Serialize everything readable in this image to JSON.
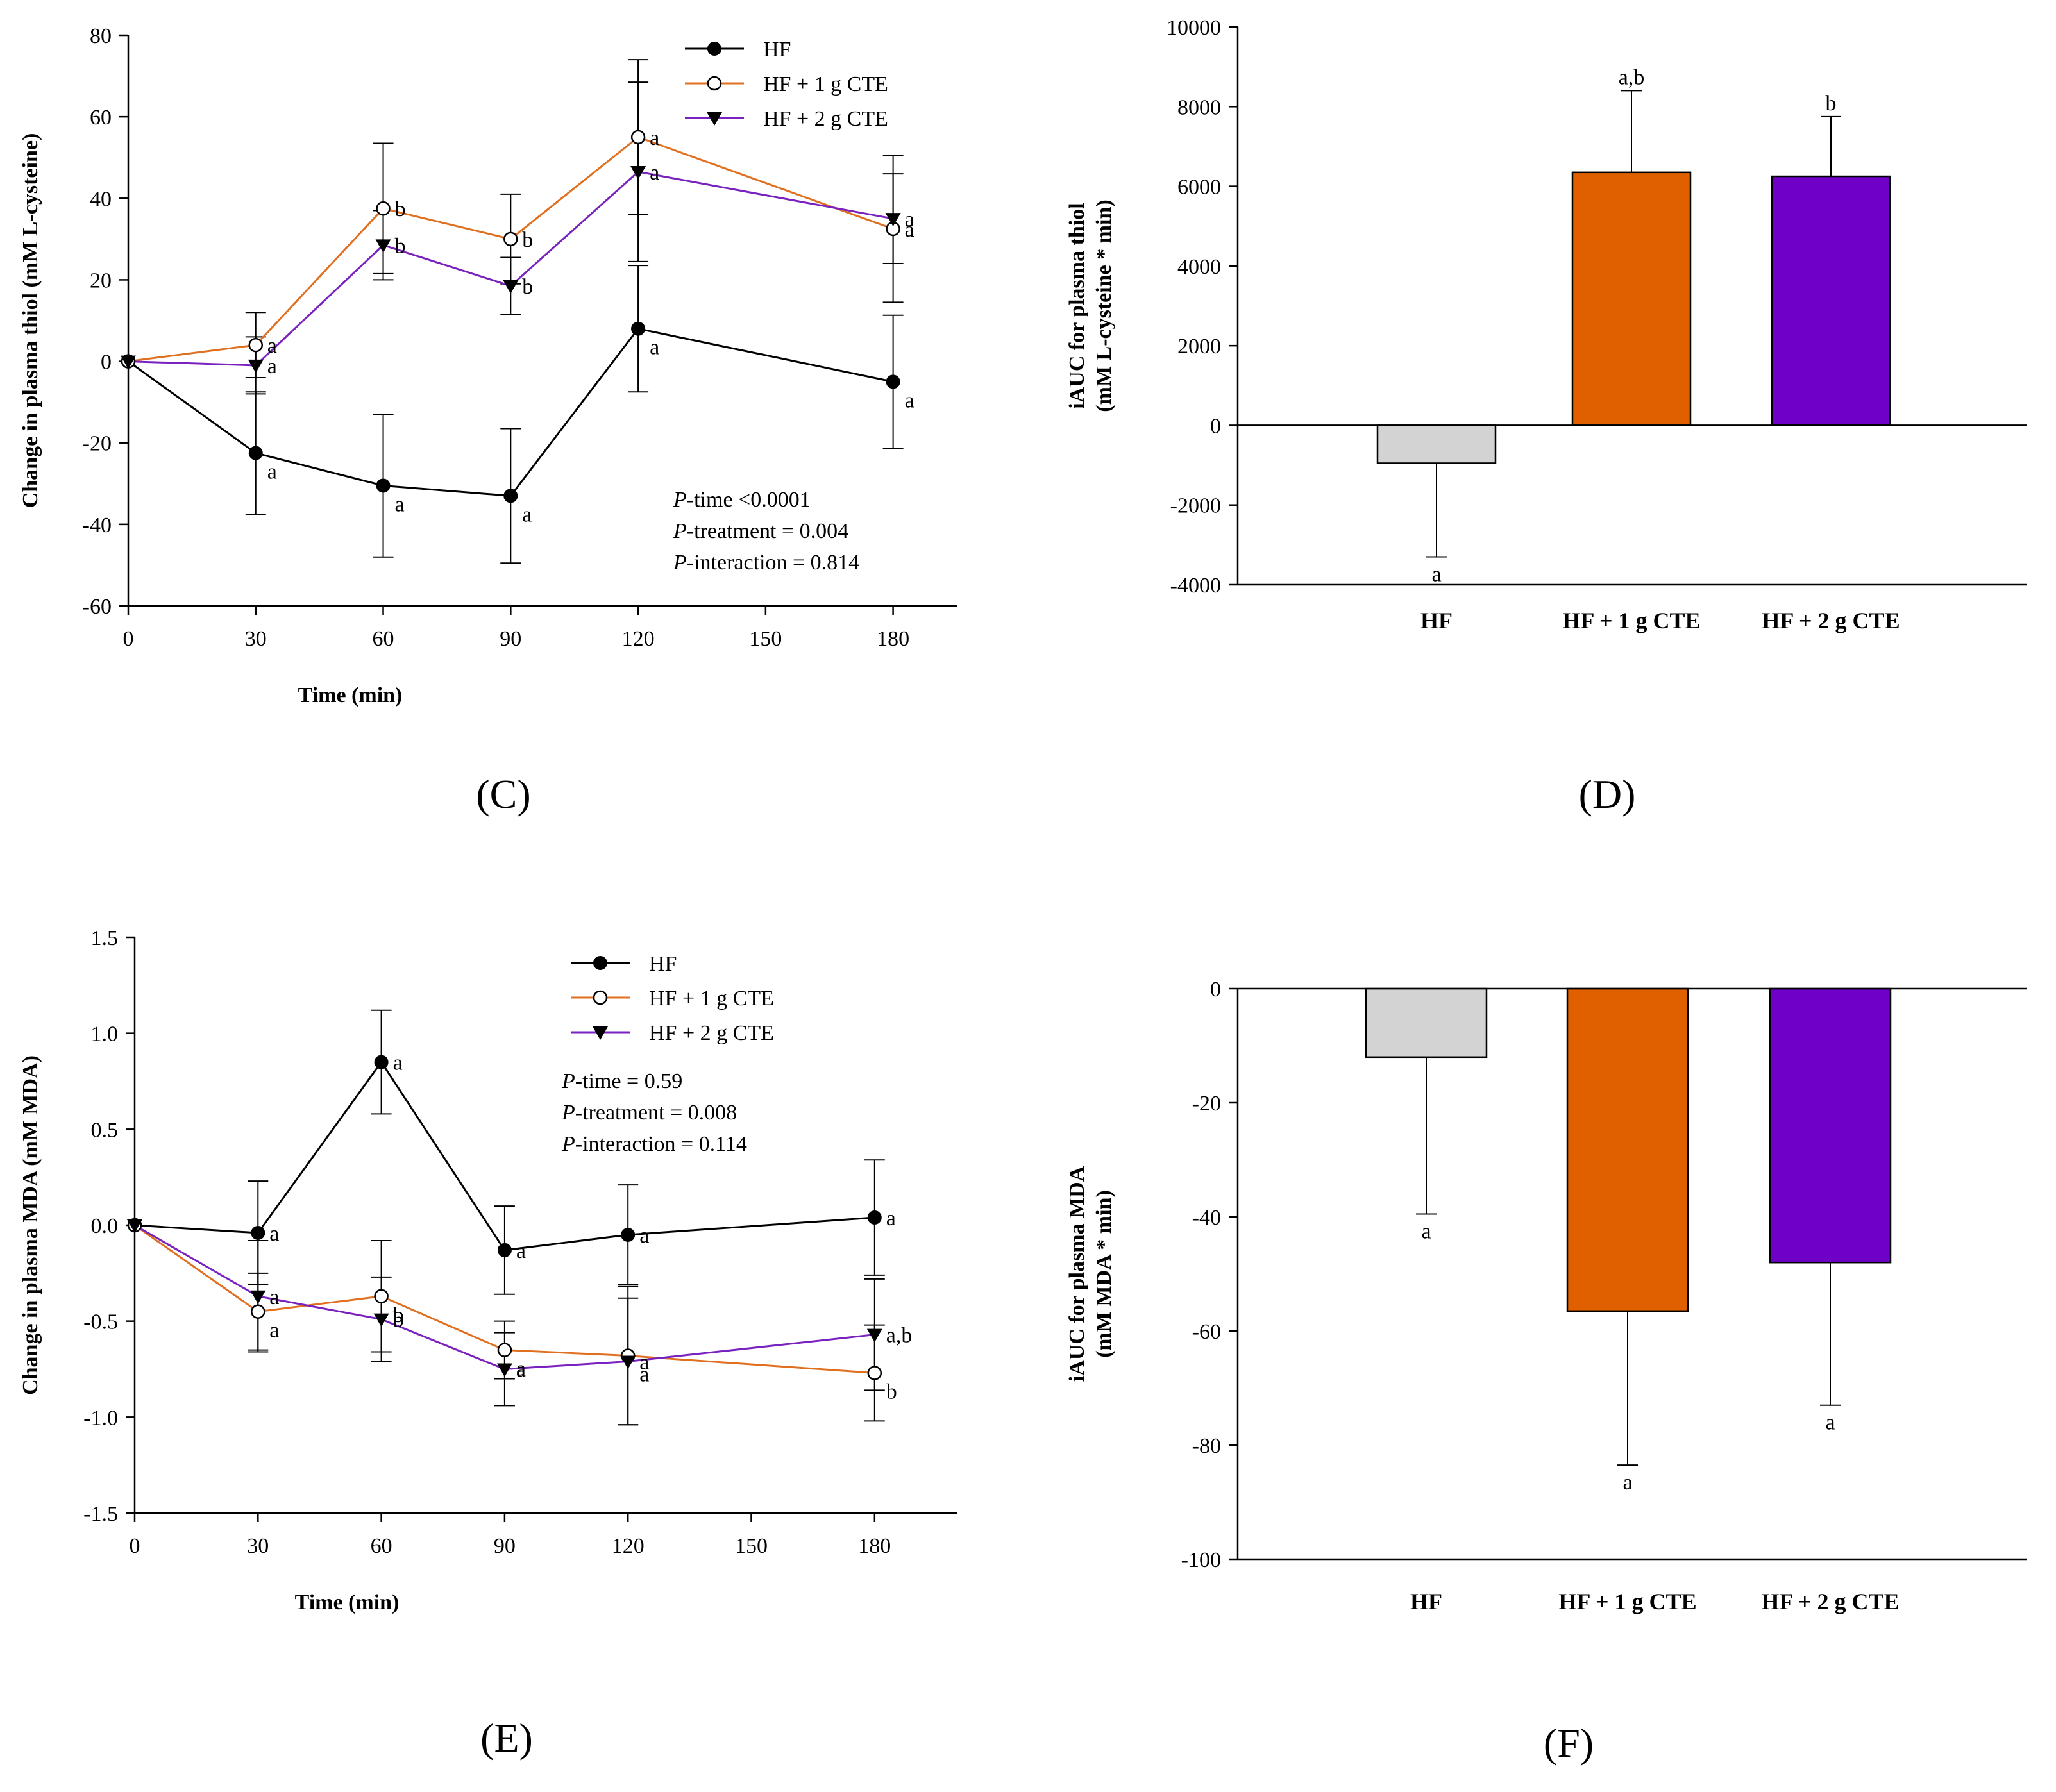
{
  "colors": {
    "hf": "#000000",
    "cte1": "#E07020",
    "cte2": "#7A22C0",
    "bar_hf": "#D3D3D3",
    "bar_cte1": "#E06000",
    "bar_cte2": "#6E00C8"
  },
  "chart_data": [
    {
      "panel": "C",
      "type": "line",
      "xlabel": "Time (min)",
      "ylabel": "Change in plasma thiol (mM L-cysteine)",
      "xlim": [
        0,
        195
      ],
      "ylim": [
        -60,
        80
      ],
      "xticks": [
        0,
        30,
        60,
        90,
        120,
        150,
        180
      ],
      "yticks": [
        -60,
        -40,
        -20,
        0,
        20,
        40,
        60,
        80
      ],
      "legend": [
        "HF",
        "HF + 1 g CTE",
        "HF + 2 g CTE"
      ],
      "x": [
        0,
        30,
        60,
        90,
        120,
        180
      ],
      "series": [
        {
          "name": "HF",
          "marker": "filled-circle",
          "values": [
            0,
            -22.5,
            -30.5,
            -33,
            8,
            -5
          ],
          "errors": [
            0,
            15,
            17.5,
            16.5,
            15.5,
            16.3
          ],
          "labels": [
            "",
            "a",
            "a",
            "a",
            "a",
            "a"
          ]
        },
        {
          "name": "HF + 1 g CTE",
          "marker": "open-circle",
          "values": [
            0,
            4,
            37.5,
            30,
            55,
            32.5
          ],
          "errors": [
            0,
            8,
            16,
            11,
            19,
            18
          ],
          "labels": [
            "",
            "a",
            "b",
            "b",
            "a",
            "a"
          ]
        },
        {
          "name": "HF + 2 g CTE",
          "marker": "down-triangle",
          "values": [
            0,
            -1,
            28.5,
            18.5,
            46.5,
            35
          ],
          "errors": [
            0,
            7,
            8.5,
            7,
            22,
            11
          ],
          "labels": [
            "",
            "a",
            "b",
            "b",
            "a",
            "a"
          ]
        }
      ],
      "stats": [
        {
          "p": "P",
          "text": "-time <0.0001"
        },
        {
          "p": "P",
          "text": "-treatment = 0.004"
        },
        {
          "p": "P",
          "text": "-interaction = 0.814"
        }
      ],
      "caption": "(C)"
    },
    {
      "panel": "D",
      "type": "bar",
      "ylabel_lines": [
        "iAUC for plasma thiol",
        "(mM L-cysteine * min)"
      ],
      "ylim": [
        -4000,
        10000
      ],
      "yticks": [
        -4000,
        -2000,
        0,
        2000,
        4000,
        6000,
        8000,
        10000
      ],
      "categories": [
        "HF",
        "HF + 1 g CTE",
        "HF + 2 g CTE"
      ],
      "values": [
        -950,
        6350,
        6250
      ],
      "errors": [
        2350,
        2050,
        1500
      ],
      "labels": [
        "a",
        "a,b",
        "b"
      ],
      "caption": "(D)"
    },
    {
      "panel": "E",
      "type": "line",
      "xlabel": "Time (min)",
      "ylabel": "Change in plasma MDA (mM MDA)",
      "xlim": [
        0,
        200
      ],
      "ylim": [
        -1.5,
        1.5
      ],
      "xticks": [
        0,
        30,
        60,
        90,
        120,
        150,
        180
      ],
      "yticks": [
        "-1.5",
        "-1.0",
        "-0.5",
        "0.0",
        "0.5",
        "1.0",
        "1.5"
      ],
      "legend": [
        "HF",
        "HF + 1 g CTE",
        "HF + 2 g CTE"
      ],
      "x": [
        0,
        30,
        60,
        90,
        120,
        180
      ],
      "series": [
        {
          "name": "HF",
          "marker": "filled-circle",
          "values": [
            0,
            -0.04,
            0.85,
            -0.13,
            -0.05,
            0.04
          ],
          "errors": [
            0,
            0.27,
            0.27,
            0.23,
            0.26,
            0.3
          ],
          "labels": [
            "",
            "a",
            "a",
            "a",
            "a",
            "a"
          ]
        },
        {
          "name": "HF + 1 g CTE",
          "marker": "open-circle",
          "values": [
            0,
            -0.45,
            -0.37,
            -0.65,
            -0.68,
            -0.77
          ],
          "errors": [
            0,
            0.2,
            0.29,
            0.15,
            0.36,
            0.25
          ],
          "labels": [
            "",
            "a",
            "b",
            "a",
            "a",
            "b"
          ]
        },
        {
          "name": "HF + 2 g CTE",
          "marker": "down-triangle",
          "values": [
            0,
            -0.37,
            -0.49,
            -0.75,
            -0.71,
            -0.57
          ],
          "errors": [
            0,
            0.29,
            0.22,
            0.19,
            0.33,
            0.29
          ],
          "labels": [
            "",
            "a",
            "b",
            "a",
            "a",
            "a,b"
          ]
        }
      ],
      "stats": [
        {
          "p": "P",
          "text": "-time = 0.59"
        },
        {
          "p": "P",
          "text": "-treatment = 0.008"
        },
        {
          "p": "P",
          "text": "-interaction = 0.114"
        }
      ],
      "caption": "(E)"
    },
    {
      "panel": "F",
      "type": "bar",
      "ylabel_lines": [
        "iAUC for plasma MDA",
        "(mM MDA * min)"
      ],
      "ylim": [
        -100,
        0
      ],
      "yticks": [
        -100,
        -80,
        -60,
        -40,
        -20,
        0
      ],
      "categories": [
        "HF",
        "HF + 1 g CTE",
        "HF + 2 g CTE"
      ],
      "values": [
        -12,
        -56.5,
        -48
      ],
      "errors": [
        27.5,
        27,
        25
      ],
      "labels": [
        "a",
        "a",
        "a"
      ],
      "caption": "(F)"
    }
  ]
}
